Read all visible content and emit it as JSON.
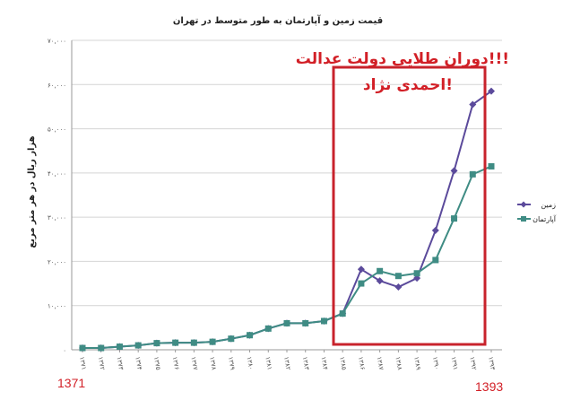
{
  "chart_data": {
    "type": "line",
    "title": "قیمت زمین و آپارتمان به طور متوسط در تهران",
    "xlabel": "",
    "ylabel": "هزار ریال در هر متر مربع",
    "categories": [
      "۱۳۷۱",
      "۱۳۷۲",
      "۱۳۷۳",
      "۱۳۷۴",
      "۱۳۷۵",
      "۱۳۷۶",
      "۱۳۷۷",
      "۱۳۷۸",
      "۱۳۷۹",
      "۱۳۸۰",
      "۱۳۸۱",
      "۱۳۸۲",
      "۱۳۸۳",
      "۱۳۸۴",
      "۱۳۸۵",
      "۱۳۸۶",
      "۱۳۸۷",
      "۱۳۸۸",
      "۱۳۸۹",
      "۱۳۹۰",
      "۱۳۹۱",
      "۱۳۹۲",
      "۱۳۹۳"
    ],
    "ylim": [
      0,
      70000
    ],
    "yticks": [
      "۰",
      "۱۰,۰۰۰",
      "۲۰,۰۰۰",
      "۳۰,۰۰۰",
      "۴۰,۰۰۰",
      "۵۰,۰۰۰",
      "۶۰,۰۰۰",
      "۷۰,۰۰۰"
    ],
    "grid": true,
    "legend_position": "right",
    "series": [
      {
        "name": "زمین",
        "color": "#5b4a9b",
        "marker": "diamond",
        "values": [
          400,
          400,
          700,
          1000,
          1500,
          1600,
          1600,
          1800,
          2500,
          3300,
          4800,
          6000,
          6000,
          6500,
          8200,
          18200,
          15600,
          14200,
          16200,
          27000,
          40500,
          55500,
          58500
        ]
      },
      {
        "name": "آپارتمان",
        "color": "#3f8c84",
        "marker": "square",
        "values": [
          400,
          400,
          700,
          1000,
          1500,
          1600,
          1600,
          1800,
          2500,
          3300,
          4800,
          6000,
          6000,
          6500,
          8200,
          15000,
          17800,
          16700,
          17300,
          20300,
          29700,
          39700,
          41500
        ]
      }
    ]
  },
  "annotation": {
    "line1": "دوران طلایی دولت عدالت!!!",
    "line2": "احمدی نژاد!",
    "box_color": "#c8232c"
  },
  "corner_labels": {
    "left": "1371",
    "right": "1393"
  }
}
